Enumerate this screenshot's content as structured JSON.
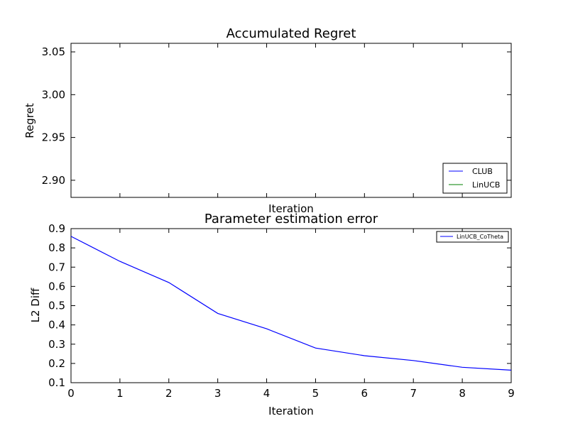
{
  "chart_data": [
    {
      "type": "line",
      "title": "Accumulated Regret",
      "xlabel": "Iteration",
      "ylabel": "Regret",
      "ylim": [
        2.88,
        3.06
      ],
      "yticks": [
        "2.90",
        "2.95",
        "3.00",
        "3.05"
      ],
      "xticks_labeled": false,
      "series": [
        {
          "name": "CLUB",
          "color": "#0000ff",
          "x": [],
          "y": []
        },
        {
          "name": "LinUCB",
          "color": "#008000",
          "x": [],
          "y": []
        }
      ],
      "legend": "lower-right"
    },
    {
      "type": "line",
      "title": "Parameter estimation error",
      "xlabel": "Iteration",
      "ylabel": "L2 Diff",
      "xlim": [
        0,
        9
      ],
      "ylim": [
        0.1,
        0.9
      ],
      "xticks": [
        "0",
        "1",
        "2",
        "3",
        "4",
        "5",
        "6",
        "7",
        "8",
        "9"
      ],
      "yticks": [
        "0.1",
        "0.2",
        "0.3",
        "0.4",
        "0.5",
        "0.6",
        "0.7",
        "0.8",
        "0.9"
      ],
      "series": [
        {
          "name": "LinUCB_CoTheta",
          "color": "#0000ff",
          "x": [
            0,
            1,
            2,
            3,
            4,
            5,
            6,
            7,
            8,
            9
          ],
          "y": [
            0.86,
            0.73,
            0.62,
            0.46,
            0.38,
            0.28,
            0.24,
            0.215,
            0.18,
            0.165
          ]
        }
      ],
      "legend": "top-right"
    }
  ]
}
